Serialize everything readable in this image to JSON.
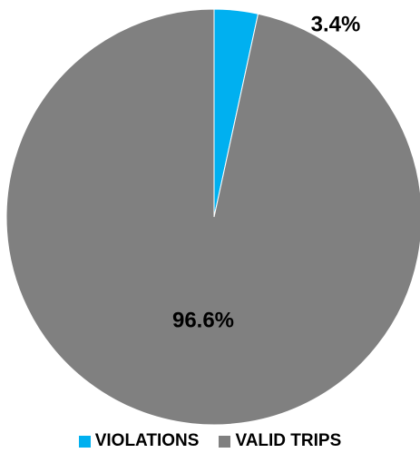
{
  "chart_data": {
    "type": "pie",
    "categories": [
      "VIOLATIONS",
      "VALID TRIPS"
    ],
    "values": [
      3.4,
      96.6
    ],
    "labels": [
      "3.4%",
      "96.6%"
    ],
    "colors": [
      "#00b0f0",
      "#808080"
    ],
    "legend_position": "bottom",
    "start_angle": "12 o'clock, clockwise"
  }
}
